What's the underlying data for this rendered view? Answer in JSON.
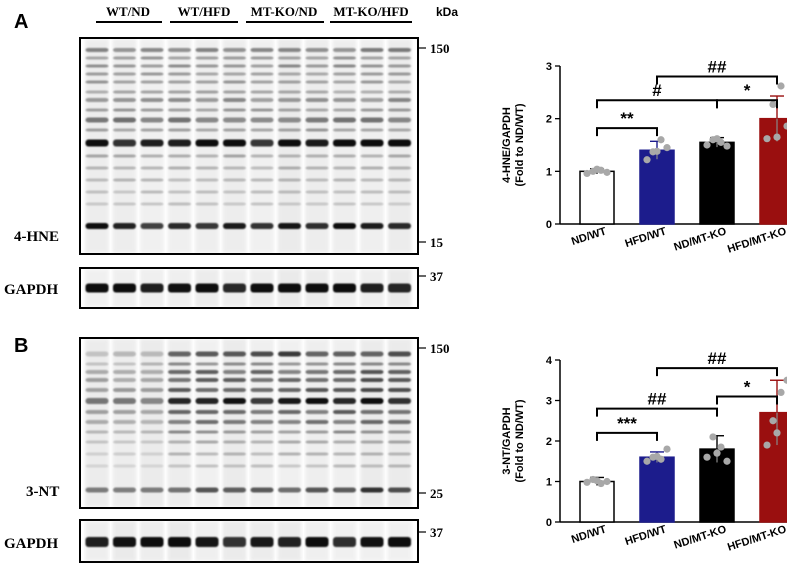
{
  "blots": {
    "group_labels": [
      "WT/ND",
      "WT/HFD",
      "MT-KO/ND",
      "MT-KO/HFD"
    ],
    "kda_label": "kDa",
    "panel_a": {
      "letter": "A",
      "main_label": "4-HNE",
      "main_markers": [
        "150",
        "15"
      ],
      "loading_label": "GAPDH",
      "loading_marker": "37"
    },
    "panel_b": {
      "letter": "B",
      "main_label": "3-NT",
      "main_markers": [
        "150",
        "25"
      ],
      "loading_label": "GAPDH",
      "loading_marker": "37"
    }
  },
  "chart_data": [
    {
      "type": "bar",
      "ylabel_lines": [
        "4-HNE/GAPDH",
        "(Fold to ND/WT)"
      ],
      "categories": [
        "ND/WT",
        "HFD/WT",
        "ND/MT-KO",
        "HFD/MT-KO"
      ],
      "values": [
        1.0,
        1.4,
        1.55,
        2.0
      ],
      "errors": [
        0.05,
        0.17,
        0.09,
        0.43
      ],
      "points": [
        [
          0.96,
          1.0,
          1.02,
          0.98,
          1.04
        ],
        [
          1.22,
          1.37,
          1.6,
          1.45,
          1.38
        ],
        [
          1.5,
          1.6,
          1.55,
          1.48,
          1.62
        ],
        [
          1.62,
          2.27,
          2.62,
          1.86,
          1.65
        ]
      ],
      "colors": [
        "#ffffff",
        "#1c1c8c",
        "#000000",
        "#9a0f0f"
      ],
      "ylim": [
        0,
        3
      ],
      "yticks": [
        "0",
        "1",
        "2",
        "3"
      ],
      "significance": [
        {
          "from": 0,
          "to": 1,
          "label": "**",
          "y": 1.82
        },
        {
          "from": 0,
          "to": 2,
          "label": "#",
          "y": 2.35
        },
        {
          "from": 2,
          "to": 3,
          "label": "*",
          "y": 2.35
        },
        {
          "from": 1,
          "to": 3,
          "label": "##",
          "y": 2.8
        }
      ]
    },
    {
      "type": "bar",
      "ylabel_lines": [
        "3-NT/GAPDH",
        "(Fold to ND/WT)"
      ],
      "categories": [
        "ND/WT",
        "HFD/WT",
        "ND/MT-KO",
        "HFD/MT-KO"
      ],
      "values": [
        1.0,
        1.6,
        1.8,
        2.7
      ],
      "errors": [
        0.1,
        0.13,
        0.33,
        0.8
      ],
      "points": [
        [
          0.98,
          1.05,
          0.95,
          1.0,
          1.02
        ],
        [
          1.5,
          1.6,
          1.55,
          1.8,
          1.62
        ],
        [
          1.6,
          2.1,
          1.85,
          1.5,
          1.7
        ],
        [
          1.9,
          2.5,
          3.2,
          3.5,
          2.2
        ]
      ],
      "colors": [
        "#ffffff",
        "#1c1c8c",
        "#000000",
        "#9a0f0f"
      ],
      "ylim": [
        0,
        4
      ],
      "yticks": [
        "0",
        "1",
        "2",
        "3",
        "4"
      ],
      "significance": [
        {
          "from": 0,
          "to": 1,
          "label": "***",
          "y": 2.2
        },
        {
          "from": 0,
          "to": 2,
          "label": "##",
          "y": 2.8
        },
        {
          "from": 2,
          "to": 3,
          "label": "*",
          "y": 3.1
        },
        {
          "from": 1,
          "to": 3,
          "label": "##",
          "y": 3.8
        }
      ]
    }
  ]
}
